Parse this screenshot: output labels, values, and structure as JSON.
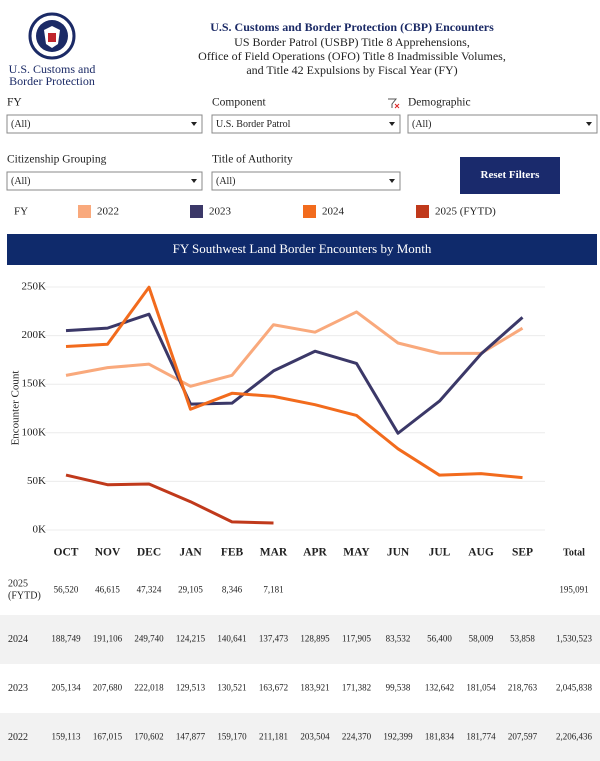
{
  "header": {
    "logo_text": [
      "U.S. Customs and",
      "Border Protection"
    ],
    "title": "U.S. Customs and Border Protection (CBP) Encounters",
    "subtitle": [
      "US Border Patrol (USBP) Title 8 Apprehensions,",
      "Office of Field Operations (OFO) Title 8 Inadmissible Volumes,",
      "and Title 42 Expulsions by Fiscal Year (FY)"
    ]
  },
  "filters": [
    {
      "label": "FY",
      "value": "(All)"
    },
    {
      "label": "Component",
      "value": "U.S. Border Patrol"
    },
    {
      "label": "Demographic",
      "value": "(All)"
    },
    {
      "label": "Citizenship Grouping",
      "value": "(All)"
    },
    {
      "label": "Title of Authority",
      "value": "(All)"
    }
  ],
  "reset_button": "Reset Filters",
  "chart_data": {
    "type": "line",
    "title": "FY Southwest Land Border Encounters by Month",
    "legend_title": "FY",
    "y_label": "Encounter Count",
    "categories": [
      "OCT",
      "NOV",
      "DEC",
      "JAN",
      "FEB",
      "MAR",
      "APR",
      "MAY",
      "JUN",
      "JUL",
      "AUG",
      "SEP"
    ],
    "ylim": [
      0,
      250000
    ],
    "yticks": [
      {
        "value": 0,
        "label": "0K"
      },
      {
        "value": 50000,
        "label": "50K"
      },
      {
        "value": 100000,
        "label": "100K"
      },
      {
        "value": 150000,
        "label": "150K"
      },
      {
        "value": 200000,
        "label": "200K"
      },
      {
        "value": 250000,
        "label": "250K"
      }
    ],
    "grid": true,
    "series": [
      {
        "name": "2022",
        "color": "#f9a97c",
        "values": [
          159113,
          167015,
          170602,
          147877,
          159170,
          211181,
          203504,
          224370,
          192399,
          181834,
          181774,
          207597
        ],
        "value_labels": [
          "159,113",
          "167,015",
          "170,602",
          "147,877",
          "159,170",
          "211,181",
          "203,504",
          "224,370",
          "192,399",
          "181,834",
          "181,774",
          "207,597"
        ]
      },
      {
        "name": "2023",
        "color": "#3b3868",
        "values": [
          205134,
          207680,
          222018,
          129513,
          130521,
          163672,
          183921,
          171382,
          99538,
          132642,
          181054,
          218763
        ],
        "value_labels": [
          "205,134",
          "207,680",
          "222,018",
          "129,513",
          "130,521",
          "163,672",
          "183,921",
          "171,382",
          "99,538",
          "132,642",
          "181,054",
          "218,763"
        ]
      },
      {
        "name": "2024",
        "color": "#f26b1d",
        "values": [
          188749,
          191106,
          249740,
          124215,
          140641,
          137473,
          128895,
          117905,
          83532,
          56400,
          58009,
          53858
        ],
        "value_labels": [
          "188,749",
          "191,106",
          "249,740",
          "124,215",
          "140,641",
          "137,473",
          "128,895",
          "117,905",
          "83,532",
          "56,400",
          "58,009",
          "53,858"
        ]
      },
      {
        "name": "2025 (FYTD)",
        "color": "#c0391b",
        "values": [
          56520,
          46615,
          47324,
          29105,
          8346,
          7181,
          null,
          null,
          null,
          null,
          null,
          null
        ],
        "value_labels": [
          "56,520",
          "46,615",
          "47,324",
          "29,105",
          "8,346",
          "7,181",
          null,
          null,
          null,
          null,
          null,
          null
        ]
      }
    ]
  },
  "table": {
    "total_header": "Total",
    "totals": [
      "195,091",
      "1,530,523",
      "2,045,838",
      "2,206,436"
    ]
  }
}
